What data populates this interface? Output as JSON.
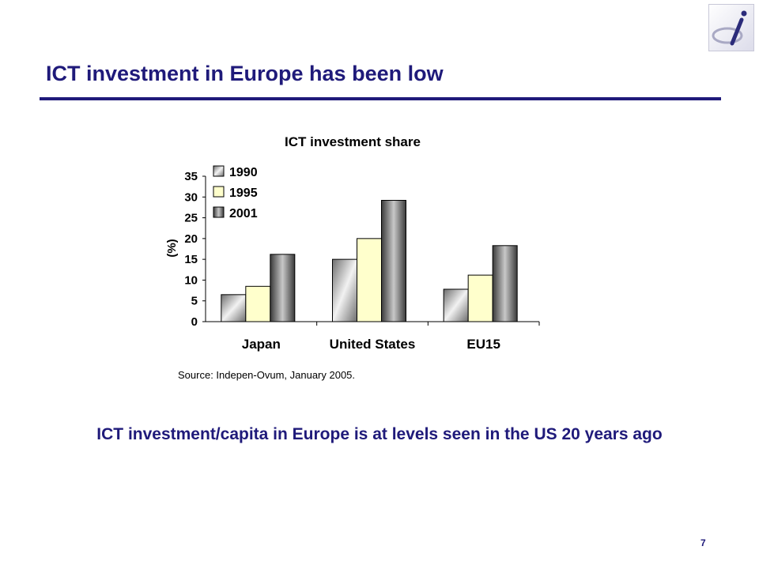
{
  "slide": {
    "title": "ICT investment in Europe has been low",
    "source": "Source: Indepen-Ovum, January 2005.",
    "bottom_text": "ICT investment/capita in Europe is at levels seen in the US 20 years ago",
    "page_number": "7",
    "title_color": "#1f1a7a",
    "logo_icon": "letter-i-logo-icon"
  },
  "chart_data": {
    "type": "bar",
    "title": "ICT investment share",
    "xlabel": "",
    "ylabel": "(%)",
    "ylim": [
      0,
      35
    ],
    "yticks": [
      0,
      5,
      10,
      15,
      20,
      25,
      30,
      35
    ],
    "categories": [
      "Japan",
      "United States",
      "EU15"
    ],
    "series": [
      {
        "name": "1990",
        "values": [
          6.5,
          15,
          7.8
        ],
        "color": "#b8b8b8"
      },
      {
        "name": "1995",
        "values": [
          8.5,
          20,
          11.2
        ],
        "color": "#ffffcc"
      },
      {
        "name": "2001",
        "values": [
          16.2,
          29.2,
          18.3
        ],
        "color": "#7a7a7a"
      }
    ],
    "legend_position": "top-left",
    "grid": false
  }
}
